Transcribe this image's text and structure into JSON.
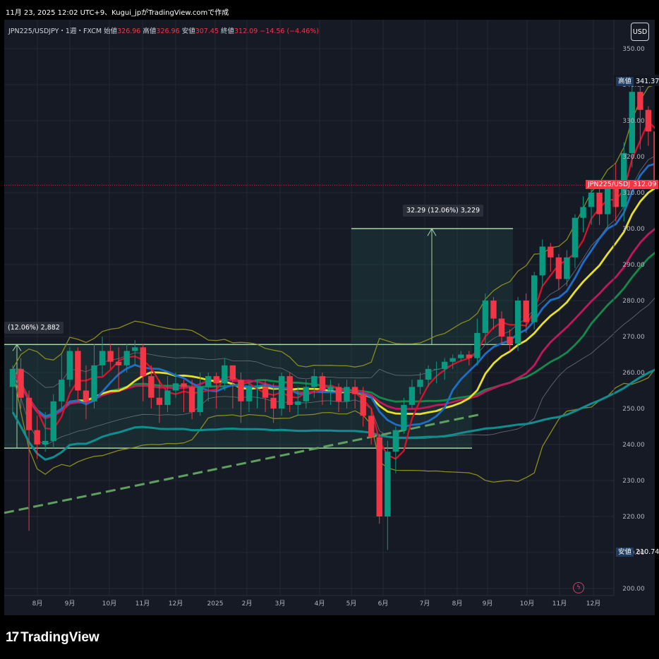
{
  "header": {
    "caption": "11月 23, 2025 12:02 UTC+9、Kugui_jpがTradingView.comで作成"
  },
  "legend": {
    "symbol": "JPN225/USDJPY・1週・FXCM",
    "open_label": "始値",
    "open": "326.96",
    "high_label": "高値",
    "high": "326.96",
    "low_label": "安値",
    "low": "307.45",
    "close_label": "終値",
    "close": "312.09",
    "change": "−14.56 (−4.46%)"
  },
  "currency_button": "USD",
  "price_tags": {
    "high_label": "高値",
    "high_value": "341.37",
    "low_label": "安値",
    "low_value": "210.74",
    "symbol": "JPN225/USDJPY",
    "current": "312.09"
  },
  "measurements": {
    "upper": "32.29 (12.06%) 3,229",
    "lower": "(12.06%) 2,882"
  },
  "footer": {
    "brand": "TradingView"
  },
  "colors": {
    "up": "#089981",
    "down": "#f23645",
    "bg": "#161a25",
    "grid": "#232838",
    "ma_red": "#e0112b",
    "ma_blue": "#1e6ec8",
    "ma_yellow": "#e8e020",
    "ma_magenta": "#c2185b",
    "ma_green": "#118a4a",
    "ma_teal": "#0e8f8f",
    "band_olive": "#8a8a1e",
    "band_gray": "#6b6f7c",
    "rect_line": "#a5d6a7",
    "trend_dash": "#5fa05f"
  },
  "chart_data": {
    "type": "candlestick",
    "title": "JPN225/USDJPY・1週・FXCM",
    "yaxis": {
      "ticks": [
        200,
        210,
        220,
        230,
        240,
        250,
        260,
        270,
        280,
        290,
        300,
        310,
        320,
        330,
        340,
        350
      ],
      "ylim": [
        198,
        357
      ]
    },
    "xaxis": {
      "labels": [
        "8月",
        "9月",
        "10月",
        "11月",
        "12月",
        "2025",
        "2月",
        "3月",
        "4月",
        "5月",
        "6月",
        "7月",
        "8月",
        "9月",
        "10月",
        "11月",
        "12月"
      ]
    },
    "candles": [
      [
        256,
        261,
        250,
        262,
        249
      ],
      [
        261,
        253,
        251,
        264,
        250
      ],
      [
        253,
        244,
        238,
        255,
        216
      ],
      [
        244,
        240,
        239,
        248,
        236
      ],
      [
        240,
        241,
        240,
        249,
        238
      ],
      [
        241,
        252,
        240,
        254,
        239
      ],
      [
        252,
        258,
        252,
        265,
        250
      ],
      [
        258,
        266,
        257,
        267,
        256
      ],
      [
        266,
        255,
        253,
        267,
        252
      ],
      [
        255,
        252,
        248,
        262,
        247
      ],
      [
        252,
        262,
        252,
        268,
        250
      ],
      [
        262,
        266,
        260,
        270,
        259
      ],
      [
        266,
        263,
        262,
        268,
        261
      ],
      [
        263,
        262,
        258,
        267,
        255
      ],
      [
        262,
        266,
        262,
        268,
        260
      ],
      [
        266,
        267,
        264,
        269,
        262
      ],
      [
        267,
        259,
        253,
        268,
        252
      ],
      [
        259,
        253,
        251,
        262,
        250
      ],
      [
        253,
        251,
        247,
        258,
        246
      ],
      [
        251,
        255,
        250,
        259,
        249
      ],
      [
        255,
        257,
        255,
        260,
        253
      ],
      [
        257,
        256,
        251,
        258,
        249
      ],
      [
        256,
        249,
        248,
        258,
        247
      ],
      [
        249,
        256,
        249,
        260,
        248
      ],
      [
        256,
        259,
        253,
        260,
        252
      ],
      [
        259,
        257,
        251,
        260,
        250
      ],
      [
        257,
        262,
        256,
        264,
        255
      ],
      [
        262,
        258,
        254,
        262,
        250
      ],
      [
        258,
        252,
        247,
        260,
        246
      ],
      [
        252,
        256,
        250,
        257,
        249
      ],
      [
        256,
        256,
        251,
        258,
        250
      ],
      [
        256,
        253,
        250,
        258,
        249
      ],
      [
        253,
        250,
        249,
        257,
        246
      ],
      [
        250,
        259,
        249,
        260,
        248
      ],
      [
        259,
        251,
        250,
        260,
        249
      ],
      [
        251,
        252,
        249,
        256,
        248
      ],
      [
        252,
        256,
        251,
        258,
        250
      ],
      [
        256,
        259,
        255,
        261,
        253
      ],
      [
        259,
        255,
        252,
        260,
        251
      ],
      [
        255,
        256,
        253,
        258,
        251
      ],
      [
        256,
        252,
        250,
        257,
        249
      ],
      [
        252,
        256,
        251,
        258,
        250
      ],
      [
        256,
        254,
        251,
        258,
        250
      ],
      [
        254,
        248,
        247,
        256,
        245
      ],
      [
        248,
        242,
        241,
        250,
        240
      ],
      [
        242,
        220,
        219,
        243,
        218
      ],
      [
        220,
        238,
        220,
        241,
        210.7
      ],
      [
        238,
        244,
        234,
        245,
        232
      ],
      [
        244,
        251,
        244,
        253,
        243
      ],
      [
        251,
        256,
        251,
        258,
        250
      ],
      [
        256,
        258,
        255,
        260,
        254
      ],
      [
        258,
        261,
        258,
        262,
        256
      ],
      [
        261,
        261,
        259,
        263,
        257
      ],
      [
        261,
        263,
        259,
        264,
        258
      ],
      [
        263,
        264,
        262,
        265,
        261
      ],
      [
        264,
        265,
        264,
        266,
        263
      ],
      [
        265,
        264,
        263,
        266,
        262
      ],
      [
        264,
        271,
        263,
        275,
        262
      ],
      [
        271,
        280,
        270,
        282,
        268
      ],
      [
        280,
        275,
        273,
        281,
        272
      ],
      [
        275,
        270,
        270,
        277,
        268
      ],
      [
        270,
        268,
        266,
        272,
        266
      ],
      [
        268,
        280,
        266,
        281,
        266
      ],
      [
        280,
        274,
        272,
        282,
        271
      ],
      [
        274,
        287,
        273,
        288,
        272
      ],
      [
        287,
        295,
        286,
        297,
        284
      ],
      [
        295,
        292,
        289,
        296,
        288
      ],
      [
        292,
        286,
        284,
        293,
        283
      ],
      [
        286,
        292,
        285,
        294,
        284
      ],
      [
        292,
        303,
        290,
        304,
        289
      ],
      [
        303,
        306,
        301,
        309,
        299
      ],
      [
        306,
        310,
        303,
        312,
        301
      ],
      [
        310,
        304,
        302,
        311,
        301
      ],
      [
        304,
        312,
        303,
        313,
        300
      ],
      [
        312,
        306,
        303,
        318,
        302
      ],
      [
        306,
        321,
        304,
        324,
        302
      ],
      [
        321,
        338,
        319,
        341.37,
        317
      ],
      [
        338,
        333,
        326,
        340,
        322
      ],
      [
        333,
        327,
        325,
        334,
        323
      ],
      [
        327,
        312,
        307.45,
        327,
        307
      ]
    ]
  }
}
